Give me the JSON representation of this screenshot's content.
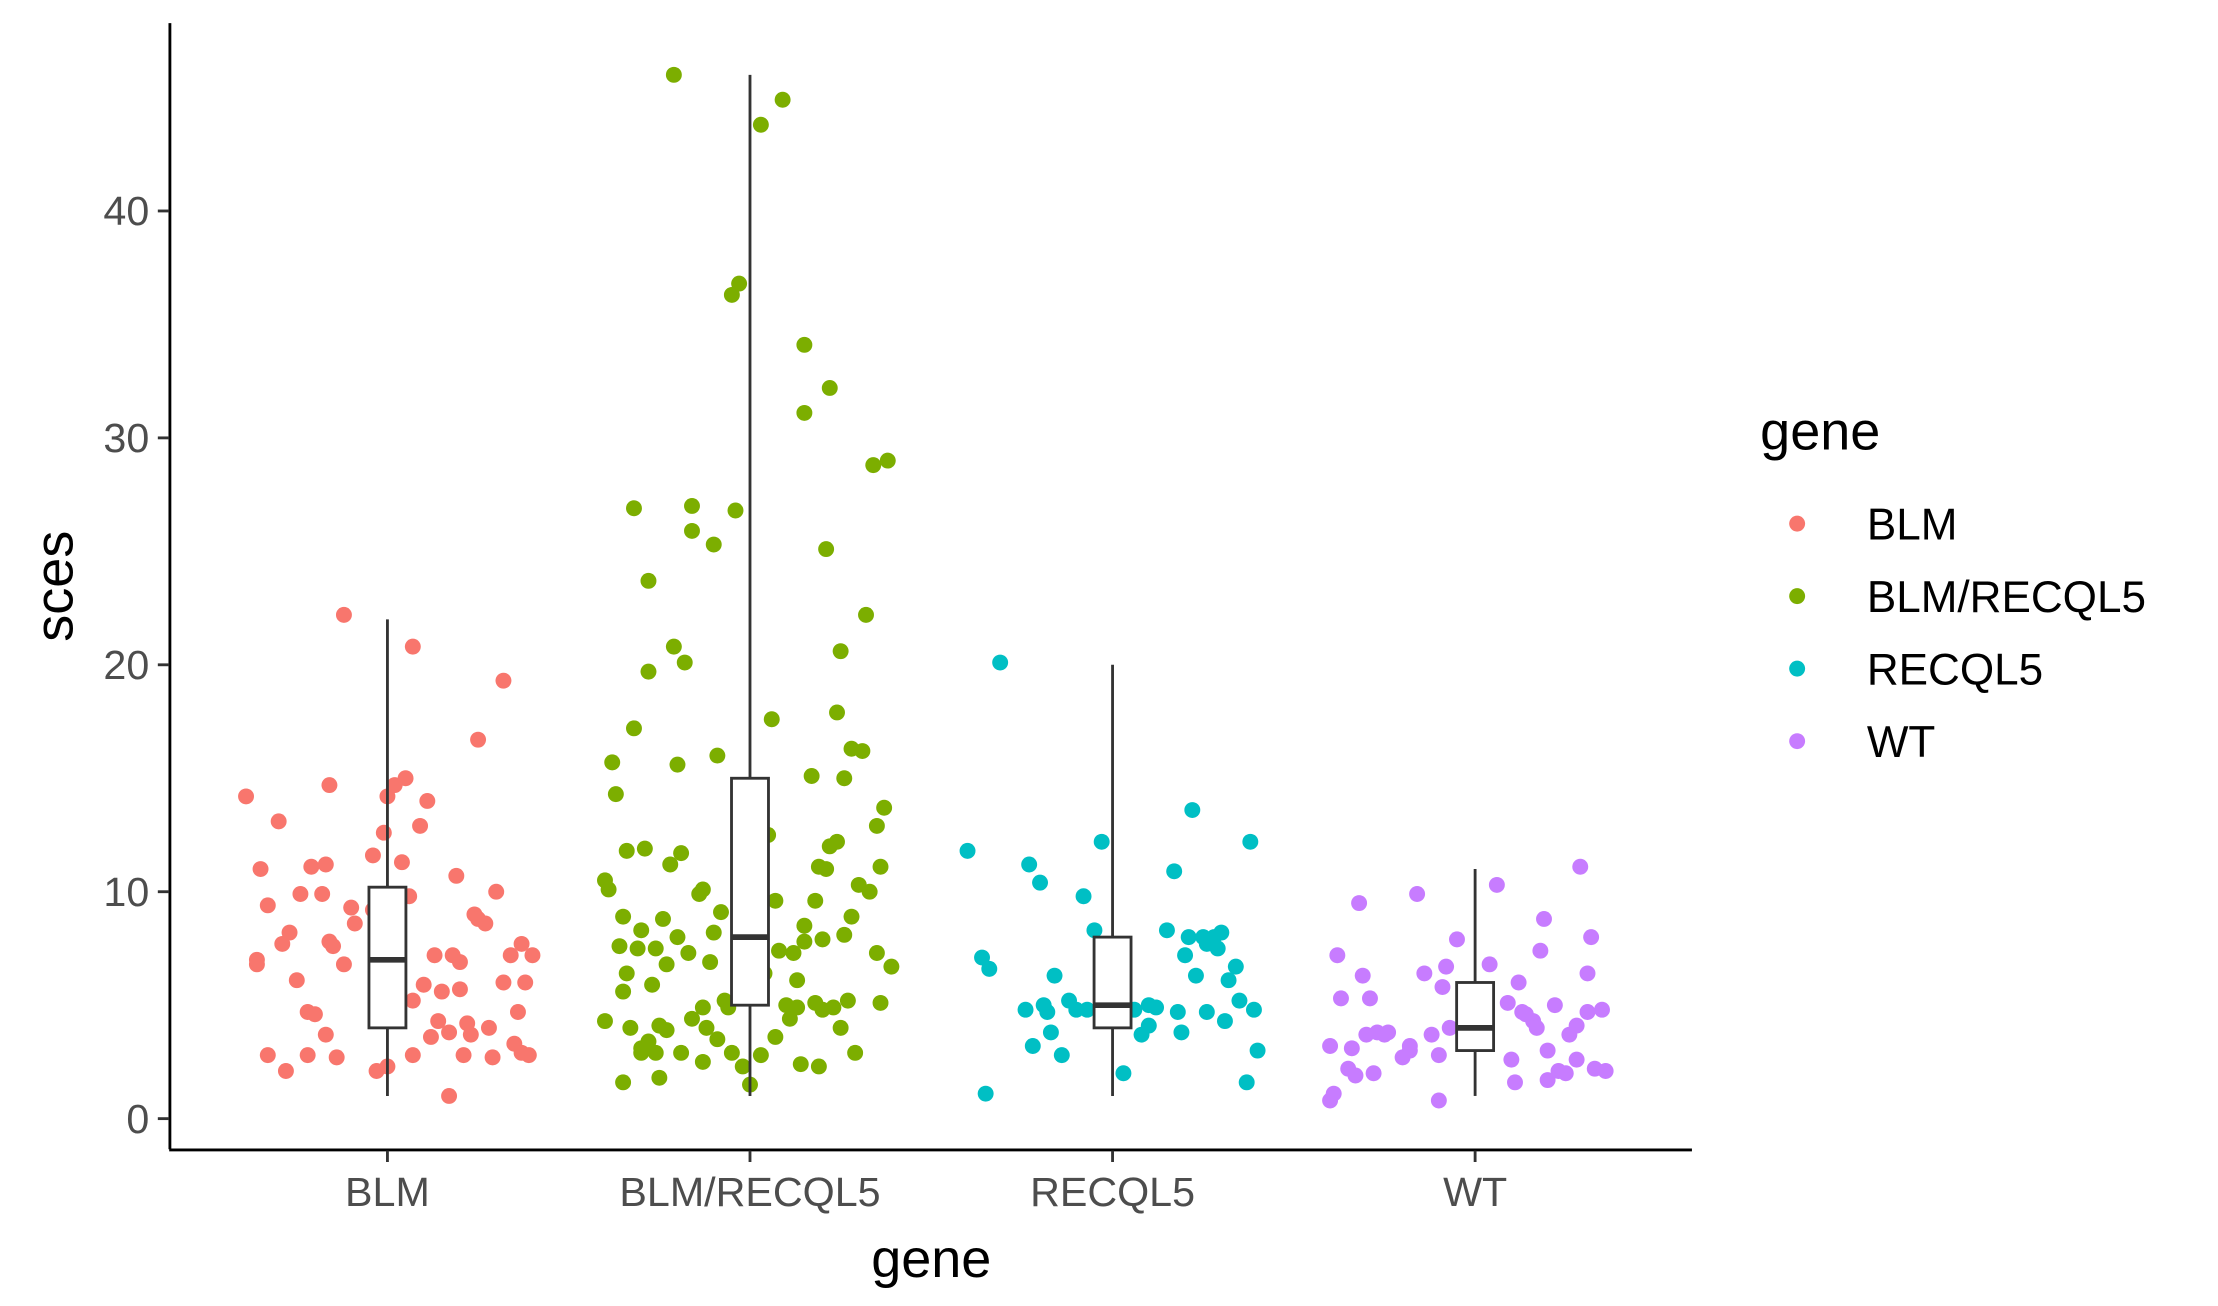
{
  "chart_data": {
    "type": "scatter",
    "subtype": "jitter-with-boxplot",
    "xlabel": "gene",
    "ylabel": "sces",
    "ylim": [
      -1.5,
      48
    ],
    "y_ticks": [
      0,
      10,
      20,
      30,
      40
    ],
    "categories": [
      "BLM",
      "BLM/RECQL5",
      "RECQL5",
      "WT"
    ],
    "grid": false,
    "legend": {
      "title": "gene",
      "placement": "right",
      "entries": [
        "BLM",
        "BLM/RECQL5",
        "RECQL5",
        "WT"
      ]
    },
    "colors": {
      "BLM": "#F8766D",
      "BLM/RECQL5": "#7CAE00",
      "RECQL5": "#00BFC4",
      "WT": "#C77CFF"
    },
    "boxplots": [
      {
        "group": "BLM",
        "min": 1,
        "q1": 4,
        "median": 7,
        "q3": 10.2,
        "max": 22
      },
      {
        "group": "BLM/RECQL5",
        "min": 1,
        "q1": 5,
        "median": 8,
        "q3": 15,
        "max": 46
      },
      {
        "group": "RECQL5",
        "min": 1,
        "q1": 4,
        "median": 5,
        "q3": 8,
        "max": 20
      },
      {
        "group": "WT",
        "min": 1,
        "q1": 3,
        "median": 4,
        "q3": 6,
        "max": 11
      }
    ],
    "series": [
      {
        "name": "BLM",
        "points": [
          [
            -0.39,
            14.2
          ],
          [
            -0.36,
            6.8
          ],
          [
            -0.36,
            7.0
          ],
          [
            -0.35,
            11.0
          ],
          [
            -0.33,
            2.8
          ],
          [
            -0.33,
            9.4
          ],
          [
            -0.3,
            13.1
          ],
          [
            -0.29,
            7.7
          ],
          [
            -0.28,
            2.1
          ],
          [
            -0.27,
            8.2
          ],
          [
            -0.25,
            6.1
          ],
          [
            -0.24,
            9.9
          ],
          [
            -0.22,
            4.7
          ],
          [
            -0.22,
            2.8
          ],
          [
            -0.21,
            11.1
          ],
          [
            -0.2,
            4.6
          ],
          [
            -0.18,
            9.9
          ],
          [
            -0.17,
            3.7
          ],
          [
            -0.17,
            11.2
          ],
          [
            -0.16,
            14.7
          ],
          [
            -0.16,
            7.8
          ],
          [
            -0.15,
            7.6
          ],
          [
            -0.14,
            2.7
          ],
          [
            -0.12,
            6.8
          ],
          [
            -0.1,
            9.3
          ],
          [
            -0.09,
            8.6
          ],
          [
            -0.04,
            11.6
          ],
          [
            -0.04,
            9.2
          ],
          [
            -0.03,
            2.1
          ],
          [
            -0.01,
            5.8
          ],
          [
            -0.01,
            12.6
          ],
          [
            0.0,
            2.3
          ],
          [
            0.0,
            14.2
          ],
          [
            0.02,
            14.7
          ],
          [
            0.04,
            11.3
          ],
          [
            0.05,
            15.0
          ],
          [
            0.06,
            9.8
          ],
          [
            0.07,
            2.8
          ],
          [
            0.07,
            5.2
          ],
          [
            0.09,
            12.9
          ],
          [
            0.1,
            5.9
          ],
          [
            0.11,
            14.0
          ],
          [
            0.12,
            3.6
          ],
          [
            0.13,
            7.2
          ],
          [
            0.14,
            4.3
          ],
          [
            0.15,
            5.6
          ],
          [
            0.17,
            1.0
          ],
          [
            0.17,
            3.8
          ],
          [
            0.18,
            7.2
          ],
          [
            0.19,
            10.7
          ],
          [
            0.2,
            5.7
          ],
          [
            0.2,
            6.9
          ],
          [
            0.21,
            2.8
          ],
          [
            0.22,
            4.2
          ],
          [
            0.23,
            3.7
          ],
          [
            0.24,
            9.0
          ],
          [
            0.25,
            8.8
          ],
          [
            0.25,
            16.7
          ],
          [
            0.27,
            8.6
          ],
          [
            0.28,
            4.0
          ],
          [
            0.29,
            2.7
          ],
          [
            0.3,
            10.0
          ],
          [
            0.32,
            19.3
          ],
          [
            0.32,
            6.0
          ],
          [
            0.34,
            7.2
          ],
          [
            0.35,
            3.3
          ],
          [
            0.36,
            4.7
          ],
          [
            0.37,
            7.7
          ],
          [
            0.37,
            2.9
          ],
          [
            0.38,
            6.0
          ],
          [
            0.39,
            2.8
          ],
          [
            0.4,
            7.2
          ],
          [
            -0.12,
            22.2
          ],
          [
            0.07,
            20.8
          ]
        ]
      },
      {
        "name": "BLM/RECQL5",
        "points": [
          [
            -0.4,
            10.5
          ],
          [
            -0.39,
            10.1
          ],
          [
            -0.38,
            15.7
          ],
          [
            -0.37,
            14.3
          ],
          [
            -0.36,
            7.6
          ],
          [
            -0.35,
            8.9
          ],
          [
            -0.35,
            5.6
          ],
          [
            -0.34,
            6.4
          ],
          [
            -0.34,
            11.8
          ],
          [
            -0.33,
            4.0
          ],
          [
            -0.32,
            17.2
          ],
          [
            -0.32,
            26.9
          ],
          [
            -0.31,
            7.5
          ],
          [
            -0.3,
            2.9
          ],
          [
            -0.3,
            8.3
          ],
          [
            -0.3,
            3.1
          ],
          [
            -0.29,
            11.9
          ],
          [
            -0.28,
            23.7
          ],
          [
            -0.28,
            19.7
          ],
          [
            -0.27,
            5.9
          ],
          [
            -0.26,
            7.5
          ],
          [
            -0.26,
            2.9
          ],
          [
            -0.25,
            1.8
          ],
          [
            -0.25,
            4.1
          ],
          [
            -0.24,
            8.8
          ],
          [
            -0.23,
            6.8
          ],
          [
            -0.23,
            3.9
          ],
          [
            -0.22,
            11.2
          ],
          [
            -0.21,
            20.8
          ],
          [
            -0.2,
            8.0
          ],
          [
            -0.2,
            15.6
          ],
          [
            -0.19,
            2.9
          ],
          [
            -0.19,
            11.7
          ],
          [
            -0.18,
            20.1
          ],
          [
            -0.17,
            7.3
          ],
          [
            -0.16,
            4.4
          ],
          [
            -0.16,
            27.0
          ],
          [
            -0.16,
            25.9
          ],
          [
            -0.14,
            9.9
          ],
          [
            -0.13,
            10.1
          ],
          [
            -0.13,
            4.9
          ],
          [
            -0.13,
            2.5
          ],
          [
            -0.12,
            4.0
          ],
          [
            -0.11,
            6.9
          ],
          [
            -0.1,
            8.2
          ],
          [
            -0.1,
            25.3
          ],
          [
            -0.09,
            16.0
          ],
          [
            -0.09,
            3.5
          ],
          [
            -0.08,
            9.1
          ],
          [
            -0.07,
            5.2
          ],
          [
            -0.06,
            4.9
          ],
          [
            -0.05,
            2.9
          ],
          [
            -0.04,
            26.8
          ],
          [
            -0.03,
            10.0
          ],
          [
            -0.02,
            7.1
          ],
          [
            -0.02,
            2.3
          ],
          [
            0.0,
            1.5
          ],
          [
            0.03,
            2.8
          ],
          [
            0.04,
            6.4
          ],
          [
            0.05,
            12.5
          ],
          [
            0.06,
            17.6
          ],
          [
            0.07,
            9.6
          ],
          [
            0.07,
            3.6
          ],
          [
            0.08,
            7.4
          ],
          [
            0.1,
            5.0
          ],
          [
            0.11,
            4.4
          ],
          [
            0.12,
            7.3
          ],
          [
            0.13,
            4.9
          ],
          [
            0.13,
            6.1
          ],
          [
            0.14,
            2.4
          ],
          [
            0.15,
            7.8
          ],
          [
            0.15,
            8.5
          ],
          [
            0.17,
            15.1
          ],
          [
            0.18,
            5.1
          ],
          [
            0.18,
            9.6
          ],
          [
            0.19,
            11.1
          ],
          [
            0.19,
            2.3
          ],
          [
            0.2,
            4.8
          ],
          [
            0.2,
            7.9
          ],
          [
            0.21,
            11.0
          ],
          [
            0.21,
            25.1
          ],
          [
            0.22,
            12.0
          ],
          [
            0.23,
            4.9
          ],
          [
            0.24,
            17.9
          ],
          [
            0.24,
            12.2
          ],
          [
            0.25,
            4.0
          ],
          [
            0.25,
            20.6
          ],
          [
            0.26,
            8.1
          ],
          [
            0.26,
            15.0
          ],
          [
            0.27,
            5.2
          ],
          [
            0.28,
            16.3
          ],
          [
            0.28,
            8.9
          ],
          [
            0.29,
            2.9
          ],
          [
            0.3,
            10.3
          ],
          [
            0.31,
            16.2
          ],
          [
            0.32,
            22.2
          ],
          [
            0.33,
            10.0
          ],
          [
            0.34,
            28.8
          ],
          [
            0.35,
            7.3
          ],
          [
            0.35,
            12.9
          ],
          [
            0.36,
            5.1
          ],
          [
            0.36,
            11.1
          ],
          [
            0.37,
            13.7
          ],
          [
            0.38,
            29.0
          ],
          [
            0.39,
            6.7
          ],
          [
            -0.21,
            46.0
          ],
          [
            0.03,
            43.8
          ],
          [
            0.09,
            44.9
          ],
          [
            -0.05,
            36.3
          ],
          [
            -0.03,
            36.8
          ],
          [
            0.15,
            34.1
          ],
          [
            0.15,
            31.1
          ],
          [
            0.22,
            32.2
          ],
          [
            -0.4,
            4.3
          ],
          [
            -0.35,
            1.6
          ],
          [
            -0.28,
            3.4
          ]
        ]
      },
      {
        "name": "RECQL5",
        "points": [
          [
            -0.4,
            11.8
          ],
          [
            -0.36,
            7.1
          ],
          [
            -0.35,
            1.1
          ],
          [
            -0.34,
            6.6
          ],
          [
            -0.31,
            20.1
          ],
          [
            -0.24,
            4.8
          ],
          [
            -0.23,
            11.2
          ],
          [
            -0.22,
            3.2
          ],
          [
            -0.2,
            10.4
          ],
          [
            -0.19,
            5.0
          ],
          [
            -0.18,
            4.7
          ],
          [
            -0.17,
            3.8
          ],
          [
            -0.16,
            6.3
          ],
          [
            -0.14,
            2.8
          ],
          [
            -0.12,
            5.2
          ],
          [
            -0.1,
            4.8
          ],
          [
            -0.08,
            9.8
          ],
          [
            -0.07,
            4.8
          ],
          [
            -0.05,
            8.3
          ],
          [
            -0.03,
            12.2
          ],
          [
            -0.02,
            4.5
          ],
          [
            0.0,
            5.3
          ],
          [
            0.03,
            2.0
          ],
          [
            0.06,
            4.8
          ],
          [
            0.08,
            3.7
          ],
          [
            0.1,
            5.0
          ],
          [
            0.1,
            4.1
          ],
          [
            0.12,
            4.9
          ],
          [
            0.15,
            8.3
          ],
          [
            0.17,
            10.9
          ],
          [
            0.18,
            4.7
          ],
          [
            0.19,
            3.8
          ],
          [
            0.2,
            7.2
          ],
          [
            0.21,
            8.0
          ],
          [
            0.22,
            13.6
          ],
          [
            0.23,
            6.3
          ],
          [
            0.25,
            8.0
          ],
          [
            0.26,
            4.7
          ],
          [
            0.26,
            7.7
          ],
          [
            0.28,
            8.0
          ],
          [
            0.29,
            7.5
          ],
          [
            0.31,
            4.3
          ],
          [
            0.32,
            6.1
          ],
          [
            0.34,
            6.7
          ],
          [
            0.35,
            5.2
          ],
          [
            0.37,
            1.6
          ],
          [
            0.38,
            12.2
          ],
          [
            0.39,
            4.8
          ],
          [
            0.4,
            3.0
          ],
          [
            0.3,
            8.2
          ]
        ]
      },
      {
        "name": "WT",
        "points": [
          [
            -0.4,
            0.8
          ],
          [
            -0.4,
            3.2
          ],
          [
            -0.39,
            1.1
          ],
          [
            -0.38,
            7.2
          ],
          [
            -0.37,
            5.3
          ],
          [
            -0.35,
            2.2
          ],
          [
            -0.34,
            3.1
          ],
          [
            -0.33,
            1.9
          ],
          [
            -0.32,
            9.5
          ],
          [
            -0.31,
            6.3
          ],
          [
            -0.3,
            3.7
          ],
          [
            -0.29,
            5.3
          ],
          [
            -0.28,
            2.0
          ],
          [
            -0.27,
            3.8
          ],
          [
            -0.25,
            3.7
          ],
          [
            -0.24,
            3.8
          ],
          [
            -0.2,
            2.7
          ],
          [
            -0.18,
            3.2
          ],
          [
            -0.18,
            3.0
          ],
          [
            -0.16,
            9.9
          ],
          [
            -0.14,
            6.4
          ],
          [
            -0.12,
            3.7
          ],
          [
            -0.1,
            2.8
          ],
          [
            -0.1,
            0.8
          ],
          [
            -0.09,
            5.8
          ],
          [
            -0.08,
            6.7
          ],
          [
            -0.07,
            4.0
          ],
          [
            -0.05,
            7.9
          ],
          [
            -0.03,
            5.3
          ],
          [
            0.0,
            3.7
          ],
          [
            0.04,
            6.8
          ],
          [
            0.06,
            10.3
          ],
          [
            0.09,
            5.1
          ],
          [
            0.1,
            2.6
          ],
          [
            0.11,
            1.6
          ],
          [
            0.12,
            6.0
          ],
          [
            0.13,
            4.7
          ],
          [
            0.16,
            4.3
          ],
          [
            0.17,
            4.0
          ],
          [
            0.18,
            7.4
          ],
          [
            0.19,
            8.8
          ],
          [
            0.2,
            3.0
          ],
          [
            0.22,
            5.0
          ],
          [
            0.23,
            2.1
          ],
          [
            0.25,
            2.0
          ],
          [
            0.26,
            3.7
          ],
          [
            0.28,
            2.6
          ],
          [
            0.29,
            11.1
          ],
          [
            0.31,
            4.7
          ],
          [
            0.31,
            6.4
          ],
          [
            0.32,
            8.0
          ],
          [
            0.33,
            2.2
          ],
          [
            0.35,
            4.8
          ],
          [
            0.36,
            2.1
          ],
          [
            0.28,
            4.1
          ],
          [
            0.2,
            1.7
          ],
          [
            -0.01,
            4.6
          ],
          [
            0.14,
            4.6
          ]
        ]
      }
    ]
  }
}
